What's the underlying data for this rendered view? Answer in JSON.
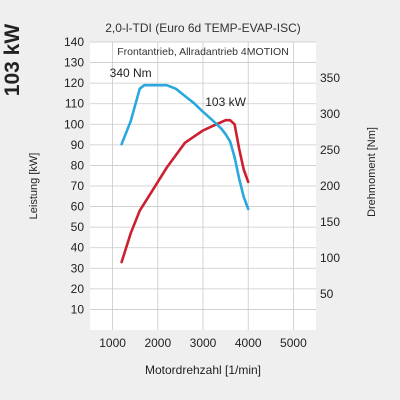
{
  "chart_data": {
    "type": "line",
    "power_label": "103 kW",
    "title": "2,0-l-TDI (Euro 6d TEMP-EVAP-ISC)",
    "subtitle": "Frontantrieb, Allradantrieb 4MOTION",
    "xlabel": "Motordrehzahl [1/min]",
    "ylabel_left": "Leistung [kW]",
    "ylabel_right": "Drehmoment [Nm]",
    "xlim": [
      500,
      5500
    ],
    "ylim_left": [
      0,
      140
    ],
    "ylim_right": [
      0,
      400
    ],
    "x_ticks": [
      1000,
      2000,
      3000,
      4000,
      5000
    ],
    "y_ticks_left": [
      10,
      20,
      30,
      40,
      50,
      60,
      70,
      80,
      90,
      100,
      110,
      120,
      130,
      140
    ],
    "y_ticks_right": [
      50,
      100,
      150,
      200,
      250,
      300,
      350
    ],
    "grid": true,
    "series": [
      {
        "name": "103 kW",
        "axis": "left",
        "color": "#cc1f2f",
        "points": [
          [
            1200,
            33
          ],
          [
            1400,
            47
          ],
          [
            1600,
            58
          ],
          [
            1800,
            65
          ],
          [
            2000,
            72
          ],
          [
            2200,
            79
          ],
          [
            2400,
            85
          ],
          [
            2600,
            91
          ],
          [
            2800,
            94
          ],
          [
            3000,
            97
          ],
          [
            3200,
            99
          ],
          [
            3400,
            101
          ],
          [
            3500,
            102
          ],
          [
            3600,
            102
          ],
          [
            3700,
            100
          ],
          [
            3800,
            88
          ],
          [
            3900,
            78
          ],
          [
            4000,
            72
          ]
        ]
      },
      {
        "name": "340 Nm",
        "axis": "right",
        "color": "#29a8df",
        "points": [
          [
            1200,
            258
          ],
          [
            1400,
            290
          ],
          [
            1600,
            335
          ],
          [
            1700,
            340
          ],
          [
            2000,
            340
          ],
          [
            2200,
            340
          ],
          [
            2400,
            335
          ],
          [
            2600,
            325
          ],
          [
            2800,
            315
          ],
          [
            3000,
            303
          ],
          [
            3200,
            292
          ],
          [
            3400,
            280
          ],
          [
            3500,
            272
          ],
          [
            3600,
            262
          ],
          [
            3700,
            240
          ],
          [
            3800,
            210
          ],
          [
            3900,
            185
          ],
          [
            4000,
            168
          ]
        ]
      }
    ]
  }
}
